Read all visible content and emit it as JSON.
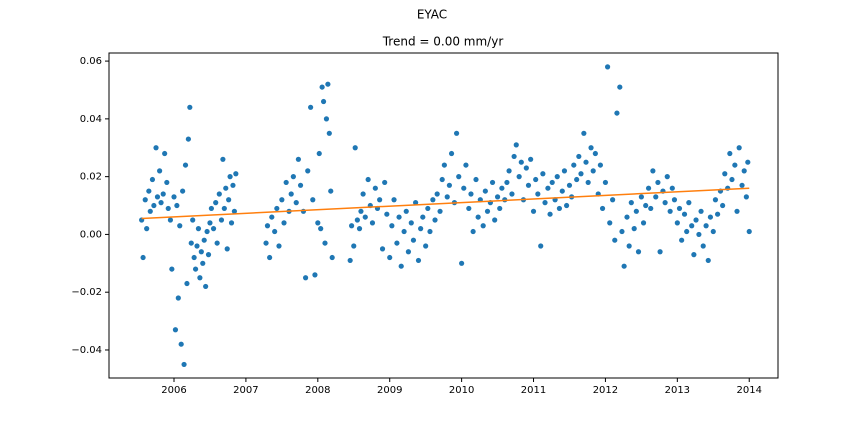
{
  "chart_data": {
    "type": "scatter",
    "suptitle": "EYAC",
    "title": "Trend = 0.00 mm/yr",
    "xlim": [
      2005.096,
      2014.4
    ],
    "ylim": [
      -0.0497,
      0.0628
    ],
    "xticks": [
      2006,
      2007,
      2008,
      2009,
      2010,
      2011,
      2012,
      2013,
      2014
    ],
    "yticks": [
      {
        "value": -0.04,
        "label": "−0.04"
      },
      {
        "value": -0.02,
        "label": "−0.02"
      },
      {
        "value": 0,
        "label": "0.00"
      },
      0.02,
      0.04,
      0.06
    ],
    "grid": false,
    "series": [
      {
        "style": "points",
        "color": "#1f77b4",
        "x": [
          2005.55,
          2005.57,
          2005.6,
          2005.62,
          2005.65,
          2005.67,
          2005.7,
          2005.72,
          2005.75,
          2005.77,
          2005.8,
          2005.82,
          2005.85,
          2005.87,
          2005.9,
          2005.92,
          2005.95,
          2005.97,
          2006.0,
          2006.02,
          2006.04,
          2006.06,
          2006.08,
          2006.1,
          2006.12,
          2006.14,
          2006.16,
          2006.18,
          2006.2,
          2006.22,
          2006.24,
          2006.26,
          2006.28,
          2006.3,
          2006.32,
          2006.34,
          2006.36,
          2006.38,
          2006.4,
          2006.42,
          2006.44,
          2006.46,
          2006.48,
          2006.5,
          2006.52,
          2006.55,
          2006.58,
          2006.6,
          2006.63,
          2006.66,
          2006.68,
          2006.7,
          2006.72,
          2006.74,
          2006.76,
          2006.78,
          2006.8,
          2006.82,
          2006.84,
          2006.86,
          2007.28,
          2007.3,
          2007.33,
          2007.36,
          2007.4,
          2007.43,
          2007.46,
          2007.5,
          2007.53,
          2007.56,
          2007.6,
          2007.63,
          2007.66,
          2007.7,
          2007.73,
          2007.76,
          2007.8,
          2007.83,
          2007.86,
          2007.9,
          2007.93,
          2007.96,
          2008.0,
          2008.02,
          2008.04,
          2008.06,
          2008.08,
          2008.1,
          2008.12,
          2008.14,
          2008.16,
          2008.18,
          2008.2,
          2008.45,
          2008.47,
          2008.5,
          2008.52,
          2008.55,
          2008.58,
          2008.6,
          2008.63,
          2008.66,
          2008.7,
          2008.73,
          2008.76,
          2008.8,
          2008.83,
          2008.86,
          2008.9,
          2008.93,
          2008.96,
          2009.0,
          2009.03,
          2009.06,
          2009.1,
          2009.13,
          2009.16,
          2009.2,
          2009.23,
          2009.26,
          2009.3,
          2009.33,
          2009.36,
          2009.4,
          2009.43,
          2009.46,
          2009.5,
          2009.53,
          2009.56,
          2009.6,
          2009.63,
          2009.66,
          2009.7,
          2009.73,
          2009.76,
          2009.8,
          2009.83,
          2009.86,
          2009.9,
          2009.93,
          2009.96,
          2010.0,
          2010.03,
          2010.06,
          2010.1,
          2010.13,
          2010.16,
          2010.2,
          2010.23,
          2010.26,
          2010.3,
          2010.33,
          2010.36,
          2010.4,
          2010.43,
          2010.46,
          2010.5,
          2010.53,
          2010.56,
          2010.6,
          2010.63,
          2010.66,
          2010.7,
          2010.73,
          2010.76,
          2010.8,
          2010.83,
          2010.86,
          2010.9,
          2010.93,
          2010.96,
          2011.0,
          2011.03,
          2011.06,
          2011.1,
          2011.13,
          2011.16,
          2011.2,
          2011.23,
          2011.26,
          2011.3,
          2011.33,
          2011.36,
          2011.4,
          2011.43,
          2011.46,
          2011.5,
          2011.53,
          2011.56,
          2011.6,
          2011.63,
          2011.66,
          2011.7,
          2011.73,
          2011.76,
          2011.8,
          2011.83,
          2011.86,
          2011.9,
          2011.93,
          2011.96,
          2012.0,
          2012.03,
          2012.06,
          2012.1,
          2012.13,
          2012.16,
          2012.2,
          2012.23,
          2012.26,
          2012.3,
          2012.33,
          2012.36,
          2012.4,
          2012.43,
          2012.46,
          2012.5,
          2012.53,
          2012.56,
          2012.6,
          2012.63,
          2012.66,
          2012.7,
          2012.73,
          2012.76,
          2012.8,
          2012.83,
          2012.86,
          2012.9,
          2012.93,
          2012.96,
          2013.0,
          2013.03,
          2013.06,
          2013.1,
          2013.13,
          2013.16,
          2013.2,
          2013.23,
          2013.26,
          2013.3,
          2013.33,
          2013.36,
          2013.4,
          2013.43,
          2013.46,
          2013.5,
          2013.53,
          2013.56,
          2013.6,
          2013.63,
          2013.66,
          2013.7,
          2013.73,
          2013.76,
          2013.8,
          2013.83,
          2013.86,
          2013.9,
          2013.93,
          2013.96,
          2013.98,
          2014.0
        ],
        "values": [
          0.005,
          -0.008,
          0.012,
          0.002,
          0.015,
          0.008,
          0.019,
          0.01,
          0.03,
          0.013,
          0.022,
          0.011,
          0.014,
          0.028,
          0.018,
          0.009,
          0.005,
          -0.012,
          0.013,
          -0.033,
          0.01,
          -0.022,
          0.003,
          -0.038,
          0.015,
          -0.045,
          0.024,
          -0.017,
          0.033,
          0.044,
          -0.003,
          0.005,
          -0.008,
          -0.012,
          -0.004,
          0.002,
          -0.015,
          -0.006,
          -0.01,
          -0.002,
          -0.018,
          0.001,
          -0.007,
          0.004,
          0.009,
          0.002,
          0.011,
          -0.003,
          0.014,
          0.005,
          0.026,
          0.009,
          0.016,
          -0.005,
          0.012,
          0.02,
          0.004,
          0.017,
          0.008,
          0.021,
          -0.003,
          0.003,
          -0.008,
          0.006,
          0.001,
          0.009,
          -0.004,
          0.012,
          0.004,
          0.018,
          0.008,
          0.014,
          0.02,
          0.011,
          0.026,
          0.017,
          0.008,
          -0.015,
          0.022,
          0.044,
          0.012,
          -0.014,
          0.004,
          0.028,
          0.002,
          0.051,
          0.046,
          -0.003,
          0.04,
          0.052,
          0.035,
          0.015,
          -0.008,
          -0.009,
          0.003,
          -0.004,
          0.03,
          0.005,
          0.002,
          0.008,
          0.014,
          0.006,
          0.019,
          0.01,
          0.004,
          0.016,
          0.009,
          0.012,
          -0.005,
          0.018,
          0.007,
          -0.008,
          0.003,
          0.012,
          -0.003,
          0.006,
          -0.011,
          0.001,
          0.008,
          -0.006,
          0.004,
          -0.002,
          0.011,
          -0.009,
          0.002,
          0.006,
          -0.004,
          0.009,
          0.001,
          0.012,
          0.005,
          0.014,
          0.008,
          0.019,
          0.024,
          0.013,
          0.017,
          0.028,
          0.011,
          0.035,
          0.02,
          -0.01,
          0.016,
          0.024,
          0.009,
          0.014,
          0.001,
          0.019,
          0.006,
          0.012,
          0.003,
          0.015,
          0.008,
          0.011,
          0.018,
          0.005,
          0.013,
          0.009,
          0.016,
          0.012,
          0.018,
          0.022,
          0.014,
          0.027,
          0.031,
          0.02,
          0.025,
          0.012,
          0.023,
          0.017,
          0.026,
          0.008,
          0.019,
          0.014,
          -0.004,
          0.021,
          0.011,
          0.016,
          0.007,
          0.018,
          0.012,
          0.02,
          0.009,
          0.015,
          0.022,
          0.01,
          0.017,
          0.013,
          0.024,
          0.019,
          0.027,
          0.021,
          0.035,
          0.025,
          0.018,
          0.03,
          0.022,
          0.028,
          0.014,
          0.024,
          0.009,
          0.018,
          0.058,
          0.004,
          0.012,
          -0.002,
          0.042,
          0.051,
          0.001,
          -0.011,
          0.006,
          -0.004,
          0.011,
          0.002,
          0.008,
          -0.006,
          0.013,
          0.004,
          0.01,
          0.016,
          0.009,
          0.022,
          0.013,
          0.018,
          -0.006,
          0.015,
          0.011,
          0.02,
          0.008,
          0.016,
          0.012,
          0.004,
          0.009,
          -0.002,
          0.007,
          0.001,
          0.011,
          0.003,
          -0.007,
          0.005,
          0.0,
          0.008,
          -0.004,
          0.003,
          -0.009,
          0.006,
          0.001,
          0.012,
          0.007,
          0.015,
          0.01,
          0.021,
          0.016,
          0.028,
          0.019,
          0.024,
          0.008,
          0.03,
          0.017,
          0.022,
          0.013,
          0.025,
          0.001
        ]
      },
      {
        "style": "line",
        "color": "#ff7f0e",
        "x": [
          2005.55,
          2014.0
        ],
        "values": [
          0.0055,
          0.016
        ]
      }
    ]
  }
}
